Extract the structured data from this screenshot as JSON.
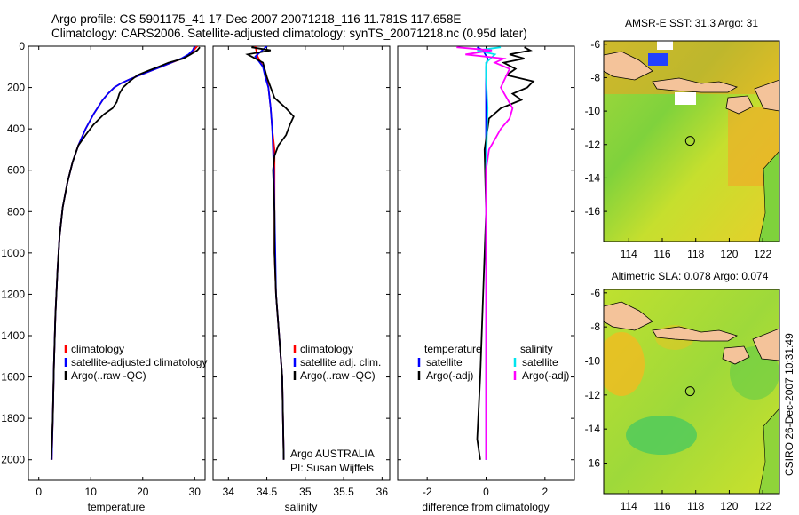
{
  "header": {
    "line1": "Argo profile: CS 5901175_41 17-Dec-2007 20071218_116 11.781S 117.658E",
    "line2": "Climatology: CARS2006. Satellite-adjusted climatology: synTS_20071218.nc (0.95d later)"
  },
  "side_label": "CSIRO 26-Dec-2007 10:31:49",
  "chart_data": [
    {
      "id": "temperature",
      "type": "line",
      "xlabel": "temperature",
      "ylabel": "",
      "xlim": [
        -2,
        32
      ],
      "ylim": [
        2100,
        0
      ],
      "xticks": [
        0,
        10,
        20,
        30
      ],
      "xtick_labels": [
        "0",
        "10",
        "20",
        "30"
      ],
      "yticks": [
        0,
        200,
        400,
        600,
        800,
        1000,
        1200,
        1400,
        1600,
        1800,
        2000
      ],
      "ytick_labels": [
        "0",
        "200",
        "400",
        "600",
        "800",
        "1000",
        "1200",
        "1400",
        "1600",
        "1800",
        "2000"
      ],
      "legend": {
        "location": "lower-right",
        "entries": [
          {
            "label": "climatology",
            "color": "#ff0000"
          },
          {
            "label": "satellite-adjusted climatology",
            "color": "#0000ff"
          },
          {
            "label": "Argo(..raw -QC)",
            "color": "#000000"
          }
        ]
      },
      "series": [
        {
          "name": "climatology",
          "color": "#ff0000",
          "x": [
            30.5,
            29.8,
            28.9,
            27.5,
            25.5,
            23.5,
            21.5,
            19.5,
            17.5,
            15.8,
            14.5,
            13.3,
            12.3,
            10.5,
            9.0,
            7.6,
            6.5,
            5.5,
            4.6,
            4.0,
            3.6,
            3.2,
            2.9,
            2.7,
            2.5
          ],
          "y": [
            0,
            20,
            40,
            60,
            80,
            100,
            120,
            140,
            160,
            180,
            200,
            230,
            260,
            330,
            400,
            480,
            560,
            660,
            780,
            920,
            1080,
            1300,
            1550,
            1800,
            2000
          ]
        },
        {
          "name": "satellite-adjusted climatology",
          "color": "#0000ff",
          "x": [
            30.0,
            29.6,
            28.8,
            27.4,
            25.5,
            23.5,
            21.5,
            19.5,
            17.5,
            15.8,
            14.5,
            13.3,
            12.3,
            10.5,
            9.0,
            7.6,
            6.5,
            5.5,
            4.6,
            4.0,
            3.6,
            3.2,
            2.9,
            2.7,
            2.5
          ],
          "y": [
            0,
            20,
            40,
            60,
            80,
            100,
            120,
            140,
            160,
            180,
            200,
            230,
            260,
            330,
            400,
            480,
            560,
            660,
            780,
            920,
            1080,
            1300,
            1550,
            1800,
            2000
          ]
        },
        {
          "name": "Argo(..raw -QC)",
          "color": "#000000",
          "x": [
            31.0,
            30.5,
            29.2,
            27.8,
            25.0,
            23.0,
            21.0,
            19.0,
            17.5,
            16.2,
            15.5,
            15.0,
            14.2,
            12.5,
            10.5,
            9.0,
            7.6,
            6.5,
            5.5,
            4.6,
            4.0,
            3.6,
            3.2,
            2.9,
            2.7,
            2.4
          ],
          "y": [
            5,
            20,
            40,
            60,
            80,
            100,
            120,
            140,
            170,
            200,
            230,
            270,
            300,
            330,
            380,
            430,
            480,
            560,
            660,
            780,
            920,
            1080,
            1300,
            1550,
            1800,
            2000
          ]
        }
      ]
    },
    {
      "id": "salinity",
      "type": "line",
      "xlabel": "salinity",
      "ylabel": "",
      "xlim": [
        33.8,
        36.1
      ],
      "ylim": [
        2100,
        0
      ],
      "xticks": [
        34,
        34.5,
        35,
        35.5,
        36
      ],
      "xtick_labels": [
        "34",
        "34.5",
        "35",
        "35.5",
        "36"
      ],
      "legend": {
        "location": "lower-right",
        "entries": [
          {
            "label": "climatology",
            "color": "#ff0000"
          },
          {
            "label": "satellite adj. clim.",
            "color": "#0000ff"
          },
          {
            "label": "Argo(..raw -QC)",
            "color": "#000000"
          }
        ]
      },
      "annotation": [
        "Argo AUSTRALIA",
        "PI: Susan Wijffels"
      ],
      "series": [
        {
          "name": "climatology",
          "color": "#ff0000",
          "x": [
            34.35,
            34.38,
            34.45,
            34.5,
            34.52,
            34.55,
            34.57,
            34.6,
            34.6,
            34.6,
            34.6,
            34.62,
            34.66,
            34.7,
            34.72
          ],
          "y": [
            0,
            50,
            100,
            150,
            200,
            300,
            400,
            500,
            600,
            800,
            1000,
            1200,
            1400,
            1600,
            2000
          ]
        },
        {
          "name": "satellite adj. clim.",
          "color": "#0000ff",
          "x": [
            34.5,
            34.35,
            34.45,
            34.48,
            34.52,
            34.55,
            34.57,
            34.58,
            34.59,
            34.6,
            34.61,
            34.62,
            34.66,
            34.7,
            34.72
          ],
          "y": [
            0,
            50,
            100,
            150,
            200,
            300,
            400,
            500,
            600,
            800,
            1000,
            1200,
            1400,
            1600,
            2000
          ]
        },
        {
          "name": "Argo(..raw -QC)",
          "color": "#000000",
          "x": [
            34.3,
            34.55,
            34.25,
            34.45,
            34.5,
            34.55,
            34.6,
            34.75,
            34.85,
            34.8,
            34.75,
            34.65,
            34.6,
            34.58,
            34.6,
            34.6,
            34.62,
            34.66,
            34.7,
            34.72
          ],
          "y": [
            5,
            20,
            40,
            80,
            150,
            200,
            250,
            300,
            340,
            380,
            430,
            480,
            530,
            600,
            800,
            1000,
            1200,
            1400,
            1600,
            2000
          ]
        }
      ]
    },
    {
      "id": "difference",
      "type": "line",
      "xlabel": "difference from climatology",
      "ylabel": "",
      "xlim": [
        -3,
        3
      ],
      "ylim": [
        2100,
        0
      ],
      "xticks": [
        -2,
        0,
        2
      ],
      "xtick_labels": [
        "-2",
        "0",
        "2"
      ],
      "legend": {
        "location": "lower-center",
        "columns": [
          {
            "title": "temperature",
            "entries": [
              {
                "label": "satellite",
                "color": "#0000ff"
              },
              {
                "label": "Argo(-adj)",
                "color": "#000000"
              }
            ]
          },
          {
            "title": "salinity",
            "entries": [
              {
                "label": "satellite",
                "color": "#00e5ee"
              },
              {
                "label": "Argo(-adj)",
                "color": "#ff00ff"
              }
            ]
          }
        ]
      },
      "series": [
        {
          "name": "temperature satellite",
          "color": "#0000ff",
          "x": [
            -0.3,
            -0.1,
            0.05,
            0.0,
            0.0,
            0.0,
            0.0,
            0.0,
            0.0
          ],
          "y": [
            5,
            20,
            60,
            100,
            200,
            400,
            800,
            1400,
            2000
          ]
        },
        {
          "name": "temperature Argo(-adj)",
          "color": "#000000",
          "x": [
            1.3,
            1.5,
            0.8,
            1.3,
            0.6,
            1.0,
            0.7,
            1.6,
            1.4,
            0.9,
            1.2,
            0.5,
            0.1,
            0.05,
            -0.05,
            0.0,
            -0.1,
            -0.2,
            -0.3,
            -0.2
          ],
          "y": [
            5,
            20,
            40,
            60,
            80,
            110,
            140,
            170,
            200,
            230,
            260,
            300,
            350,
            400,
            500,
            800,
            1200,
            1600,
            1900,
            2000
          ]
        },
        {
          "name": "salinity satellite",
          "color": "#00e5ee",
          "x": [
            0.5,
            -0.3,
            0.3,
            0.0,
            0.0,
            0.05,
            0.0,
            0.0,
            0.0
          ],
          "y": [
            5,
            20,
            40,
            80,
            150,
            300,
            600,
            1200,
            2000
          ]
        },
        {
          "name": "salinity Argo(-adj)",
          "color": "#ff00ff",
          "x": [
            -1.0,
            0.2,
            -0.7,
            0.6,
            0.3,
            0.8,
            0.5,
            0.9,
            0.8,
            0.5,
            0.3,
            0.1,
            0.0,
            0.0,
            0.0,
            0.0
          ],
          "y": [
            5,
            20,
            40,
            60,
            80,
            110,
            200,
            300,
            350,
            400,
            450,
            500,
            600,
            800,
            1200,
            2000
          ]
        }
      ]
    },
    {
      "id": "sst_map",
      "type": "heatmap",
      "title": "AMSR-E SST: 31.3 Argo: 31",
      "xlim": [
        112.5,
        123
      ],
      "ylim": [
        -17.8,
        -5.8
      ],
      "xticks": [
        114,
        116,
        118,
        120,
        122
      ],
      "xtick_labels": [
        "114",
        "116",
        "118",
        "120",
        "122"
      ],
      "yticks": [
        -6,
        -8,
        -10,
        -12,
        -14,
        -16
      ],
      "ytick_labels": [
        "-6",
        "-8",
        "-10",
        "-12",
        "-14",
        "-16"
      ],
      "marker": {
        "lon": 117.658,
        "lat": -11.781
      }
    },
    {
      "id": "sla_map",
      "type": "heatmap",
      "title": "Altimetric SLA: 0.078 Argo: 0.074",
      "xlim": [
        112.5,
        123
      ],
      "ylim": [
        -17.8,
        -5.8
      ],
      "xticks": [
        114,
        116,
        118,
        120,
        122
      ],
      "xtick_labels": [
        "114",
        "116",
        "118",
        "120",
        "122"
      ],
      "yticks": [
        -6,
        -8,
        -10,
        -12,
        -14,
        -16
      ],
      "ytick_labels": [
        "-6",
        "-8",
        "-10",
        "-12",
        "-14",
        "-16"
      ],
      "marker": {
        "lon": 117.658,
        "lat": -11.781
      }
    }
  ]
}
